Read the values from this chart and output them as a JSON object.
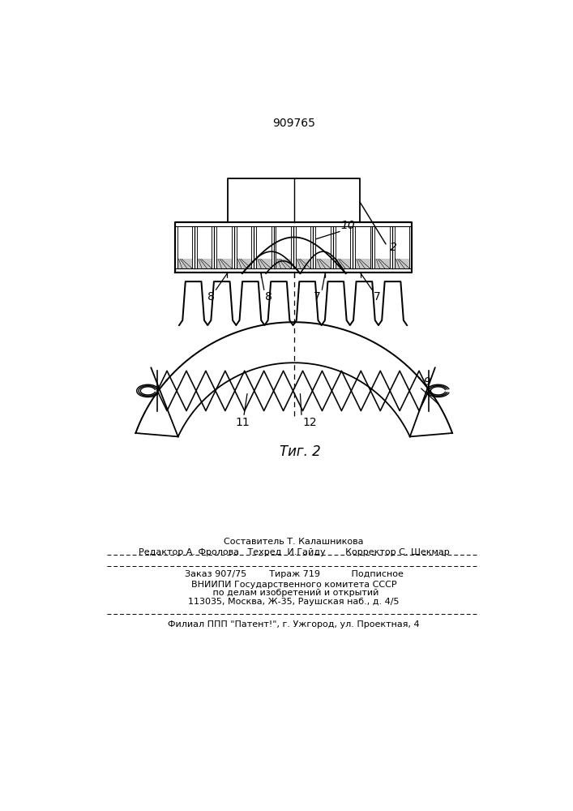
{
  "patent_number": "909765",
  "fig_label": "Τиг. 2",
  "bg_color": "#ffffff",
  "line_color": "#000000",
  "label_2": "2",
  "label_7": "7",
  "label_8": "8",
  "label_9": "9",
  "label_10": "10",
  "label_11": "11",
  "label_12": "12",
  "footer_line1": "Составитель Т. Калашникова",
  "footer_line2": "Редактор А. Фролова   Техред  И.Гайду       Корректор С. Шекмар",
  "footer_line3": "Заказ 907/75        Тираж 719           Подписное",
  "footer_line4": "ВНИИПИ Государственного комитета СССР",
  "footer_line5": " по делам изобретений и открытий",
  "footer_line6": "113035, Москва, Ж-35, Раушская наб., д. 4/5",
  "footer_line7": "Филиал ППП \"Патент!\", г. Ужгород, ул. Проектная, 4"
}
